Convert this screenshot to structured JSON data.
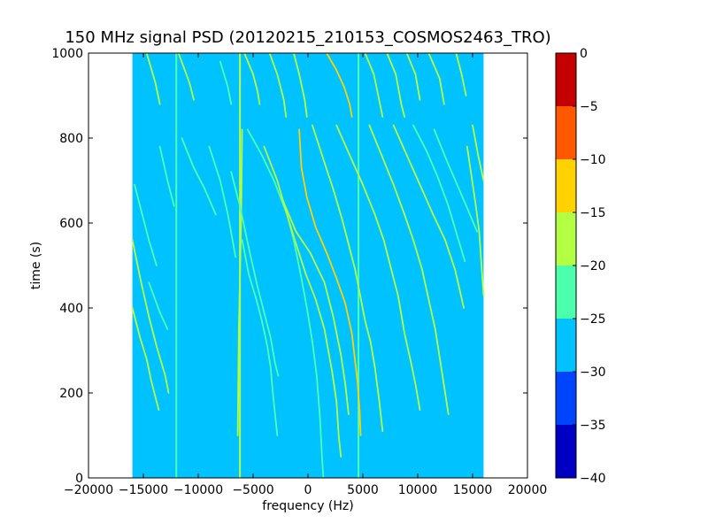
{
  "chart_data": {
    "type": "heatmap",
    "title": "150 MHz signal PSD (20120215_210153_COSMOS2463_TRO)",
    "xlabel": "frequency (Hz)",
    "ylabel": "time (s)",
    "xlim": [
      -20000,
      20000
    ],
    "ylim": [
      0,
      1000
    ],
    "xticks": [
      -20000,
      -15000,
      -10000,
      -5000,
      0,
      5000,
      10000,
      15000,
      20000
    ],
    "xtick_labels": [
      "−20000",
      "−15000",
      "−10000",
      "−5000",
      "0",
      "5000",
      "10000",
      "15000",
      "20000"
    ],
    "yticks": [
      0,
      200,
      400,
      600,
      800,
      1000
    ],
    "ytick_labels": [
      "0",
      "200",
      "400",
      "600",
      "800",
      "1000"
    ],
    "data_extent": {
      "freq": [
        -16000,
        16000
      ],
      "time": [
        0,
        1000
      ]
    },
    "background_level": -27.5,
    "colorbar": {
      "range": [
        -40,
        0
      ],
      "ticks": [
        0,
        -5,
        -10,
        -15,
        -20,
        -25,
        -30,
        -35,
        -40
      ],
      "tick_labels": [
        "0",
        "−5",
        "−10",
        "−15",
        "−20",
        "−25",
        "−30",
        "−35",
        "−40"
      ],
      "bands": [
        {
          "from": -40,
          "to": -35,
          "color": "#0000c4"
        },
        {
          "from": -35,
          "to": -30,
          "color": "#0044ff"
        },
        {
          "from": -30,
          "to": -25,
          "color": "#00c2ff"
        },
        {
          "from": -25,
          "to": -20,
          "color": "#4cffad"
        },
        {
          "from": -20,
          "to": -15,
          "color": "#b3ff44"
        },
        {
          "from": -15,
          "to": -10,
          "color": "#ffd200"
        },
        {
          "from": -10,
          "to": -5,
          "color": "#ff5800"
        },
        {
          "from": -5,
          "to": 0,
          "color": "#c40000"
        }
      ]
    },
    "vertical_lines": [
      {
        "freq": -12000,
        "t_range": [
          0,
          1000
        ],
        "level": -22
      },
      {
        "freq": -6200,
        "t_range": [
          0,
          1000
        ],
        "level": -18
      },
      {
        "freq": 4600,
        "t_range": [
          0,
          1000
        ],
        "level": -22
      }
    ],
    "tracks": [
      {
        "level": -12,
        "points": [
          [
            1700,
            1000
          ],
          [
            2600,
            960
          ],
          [
            3300,
            920
          ],
          [
            3800,
            880
          ],
          [
            4000,
            850
          ]
        ]
      },
      {
        "level": -12,
        "points": [
          [
            -800,
            820
          ],
          [
            -600,
            730
          ],
          [
            -100,
            660
          ],
          [
            700,
            590
          ],
          [
            1700,
            530
          ],
          [
            2600,
            470
          ],
          [
            3400,
            410
          ],
          [
            4000,
            340
          ],
          [
            4500,
            230
          ],
          [
            4700,
            160
          ],
          [
            4800,
            100
          ]
        ]
      },
      {
        "level": -18,
        "points": [
          [
            -6400,
            100
          ],
          [
            -6300,
            350
          ],
          [
            -6100,
            600
          ],
          [
            -6000,
            820
          ]
        ]
      },
      {
        "level": -20,
        "points": [
          [
            -3500,
            1000
          ],
          [
            -2800,
            950
          ],
          [
            -2200,
            890
          ],
          [
            -2000,
            850
          ]
        ]
      },
      {
        "level": -20,
        "points": [
          [
            -1300,
            1000
          ],
          [
            -800,
            950
          ],
          [
            -300,
            890
          ],
          [
            -100,
            850
          ]
        ]
      },
      {
        "level": -20,
        "points": [
          [
            -11800,
            1000
          ],
          [
            -10800,
            930
          ],
          [
            -10400,
            890
          ]
        ]
      },
      {
        "level": -20,
        "points": [
          [
            -14700,
            1000
          ],
          [
            -13900,
            930
          ],
          [
            -13500,
            880
          ]
        ]
      },
      {
        "level": -21,
        "points": [
          [
            -8000,
            980
          ],
          [
            -7300,
            920
          ],
          [
            -7000,
            880
          ]
        ]
      },
      {
        "level": -20,
        "points": [
          [
            -5800,
            1000
          ],
          [
            -5000,
            950
          ],
          [
            -4600,
            910
          ],
          [
            -4400,
            880
          ]
        ]
      },
      {
        "level": -20,
        "points": [
          [
            5200,
            1000
          ],
          [
            6000,
            950
          ],
          [
            6400,
            900
          ],
          [
            6800,
            850
          ]
        ]
      },
      {
        "level": -20,
        "points": [
          [
            7200,
            1000
          ],
          [
            8000,
            950
          ],
          [
            8500,
            880
          ],
          [
            8800,
            850
          ]
        ]
      },
      {
        "level": -20,
        "points": [
          [
            9000,
            1000
          ],
          [
            9800,
            950
          ],
          [
            10200,
            890
          ]
        ]
      },
      {
        "level": -20,
        "points": [
          [
            11000,
            1000
          ],
          [
            12000,
            940
          ],
          [
            12400,
            880
          ]
        ]
      },
      {
        "level": -20,
        "points": [
          [
            13500,
            1000
          ],
          [
            14000,
            950
          ],
          [
            14400,
            900
          ]
        ]
      },
      {
        "level": -20,
        "points": [
          [
            15000,
            830
          ],
          [
            15500,
            760
          ],
          [
            16000,
            700
          ]
        ]
      },
      {
        "level": -22,
        "points": [
          [
            -5500,
            820
          ],
          [
            -4200,
            760
          ],
          [
            -3100,
            700
          ],
          [
            -1900,
            620
          ],
          [
            -1300,
            560
          ],
          [
            -600,
            470
          ],
          [
            -100,
            400
          ],
          [
            400,
            320
          ],
          [
            800,
            240
          ],
          [
            1100,
            140
          ],
          [
            1300,
            40
          ],
          [
            1400,
            0
          ]
        ]
      },
      {
        "level": -20,
        "points": [
          [
            -4000,
            780
          ],
          [
            -2800,
            700
          ],
          [
            -1800,
            610
          ],
          [
            -1200,
            560
          ],
          [
            -200,
            480
          ],
          [
            700,
            420
          ],
          [
            1500,
            350
          ],
          [
            2200,
            250
          ],
          [
            2600,
            180
          ],
          [
            2800,
            100
          ],
          [
            3000,
            50
          ]
        ]
      },
      {
        "level": -20,
        "points": [
          [
            -2400,
            660
          ],
          [
            -1100,
            580
          ],
          [
            200,
            530
          ],
          [
            1500,
            460
          ],
          [
            2300,
            380
          ],
          [
            3000,
            290
          ],
          [
            3400,
            220
          ],
          [
            3700,
            150
          ]
        ]
      },
      {
        "level": -22,
        "points": [
          [
            -7000,
            720
          ],
          [
            -6200,
            640
          ],
          [
            -5300,
            530
          ],
          [
            -4600,
            450
          ],
          [
            -3900,
            380
          ],
          [
            -3400,
            330
          ],
          [
            -3000,
            270
          ],
          [
            -2700,
            240
          ]
        ]
      },
      {
        "level": -22,
        "points": [
          [
            -6000,
            560
          ],
          [
            -5400,
            480
          ],
          [
            -4700,
            420
          ],
          [
            -4200,
            370
          ],
          [
            -3700,
            310
          ],
          [
            -3400,
            260
          ],
          [
            -3200,
            200
          ],
          [
            -3000,
            150
          ],
          [
            -2800,
            100
          ]
        ]
      },
      {
        "level": -22,
        "points": [
          [
            -9000,
            780
          ],
          [
            -8000,
            700
          ],
          [
            -7300,
            620
          ],
          [
            -6600,
            520
          ]
        ]
      },
      {
        "level": -22,
        "points": [
          [
            -11500,
            800
          ],
          [
            -10400,
            730
          ],
          [
            -9400,
            680
          ],
          [
            -8400,
            620
          ]
        ]
      },
      {
        "level": -22,
        "points": [
          [
            -13500,
            780
          ],
          [
            -12800,
            700
          ],
          [
            -12200,
            640
          ]
        ]
      },
      {
        "level": -22,
        "points": [
          [
            -15800,
            690
          ],
          [
            -15200,
            630
          ],
          [
            -14500,
            560
          ],
          [
            -13800,
            500
          ]
        ]
      },
      {
        "level": -20,
        "points": [
          [
            -16000,
            560
          ],
          [
            -15200,
            460
          ],
          [
            -14500,
            380
          ],
          [
            -13800,
            310
          ],
          [
            -13000,
            240
          ],
          [
            -12700,
            200
          ]
        ]
      },
      {
        "level": -20,
        "points": [
          [
            -16000,
            400
          ],
          [
            -15300,
            330
          ],
          [
            -14700,
            280
          ],
          [
            -14300,
            230
          ],
          [
            -13600,
            160
          ]
        ]
      },
      {
        "level": -22,
        "points": [
          [
            -14500,
            460
          ],
          [
            -13500,
            390
          ],
          [
            -12800,
            350
          ]
        ]
      },
      {
        "level": -20,
        "points": [
          [
            400,
            830
          ],
          [
            1400,
            750
          ],
          [
            2300,
            680
          ],
          [
            3100,
            610
          ],
          [
            3700,
            550
          ],
          [
            4300,
            490
          ],
          [
            4900,
            410
          ],
          [
            5200,
            370
          ],
          [
            5700,
            320
          ],
          [
            6100,
            260
          ],
          [
            6500,
            180
          ],
          [
            6800,
            110
          ]
        ]
      },
      {
        "level": -20,
        "points": [
          [
            2600,
            830
          ],
          [
            3800,
            760
          ],
          [
            5000,
            690
          ],
          [
            6100,
            620
          ],
          [
            6900,
            560
          ],
          [
            7600,
            490
          ],
          [
            8200,
            430
          ],
          [
            8800,
            340
          ],
          [
            9400,
            270
          ],
          [
            9800,
            220
          ],
          [
            10200,
            160
          ]
        ]
      },
      {
        "level": -20,
        "points": [
          [
            5600,
            830
          ],
          [
            6700,
            760
          ],
          [
            7800,
            690
          ],
          [
            8800,
            620
          ],
          [
            9600,
            560
          ],
          [
            10400,
            490
          ],
          [
            11000,
            420
          ],
          [
            11600,
            350
          ],
          [
            12200,
            250
          ],
          [
            12800,
            150
          ]
        ]
      },
      {
        "level": -20,
        "points": [
          [
            7800,
            830
          ],
          [
            9000,
            760
          ],
          [
            10200,
            690
          ],
          [
            11400,
            620
          ],
          [
            12500,
            560
          ],
          [
            13400,
            490
          ],
          [
            14200,
            400
          ]
        ]
      },
      {
        "level": -22,
        "points": [
          [
            9600,
            830
          ],
          [
            10800,
            770
          ],
          [
            11800,
            710
          ],
          [
            12800,
            640
          ],
          [
            13600,
            570
          ],
          [
            14300,
            510
          ]
        ]
      },
      {
        "level": -20,
        "points": [
          [
            14500,
            780
          ],
          [
            14900,
            710
          ],
          [
            15300,
            640
          ],
          [
            15600,
            580
          ],
          [
            16000,
            430
          ]
        ]
      },
      {
        "level": -22,
        "points": [
          [
            11500,
            820
          ],
          [
            12600,
            750
          ],
          [
            13600,
            690
          ],
          [
            14600,
            630
          ],
          [
            15400,
            580
          ]
        ]
      }
    ]
  }
}
